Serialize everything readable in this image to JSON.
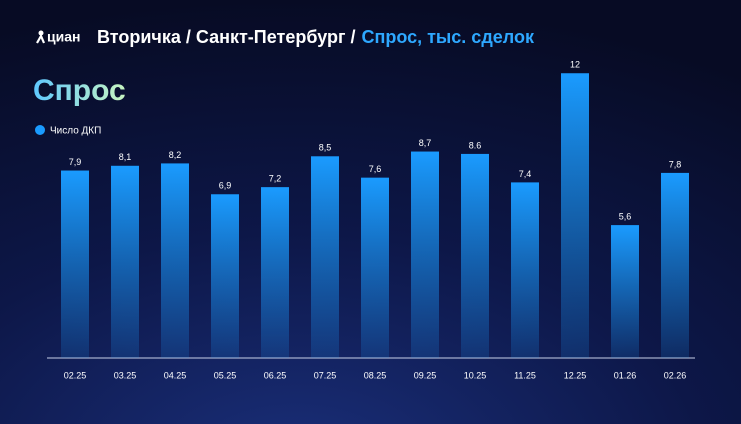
{
  "chart_data": {
    "type": "bar",
    "brand": "циан",
    "title": "Вторичка / Санкт-Петербург /",
    "subtitle": "Спрос, тыс. сделок",
    "heading": "Спрос",
    "series_name": "Число ДКП",
    "color": "#1a9bff",
    "categories": [
      "02.25",
      "03.25",
      "04.25",
      "05.25",
      "06.25",
      "07.25",
      "08.25",
      "09.25",
      "10.25",
      "11.25",
      "12.25",
      "01.26",
      "02.26"
    ],
    "values": [
      7.9,
      8.1,
      8.2,
      6.9,
      7.2,
      8.5,
      7.6,
      8.7,
      8.6,
      7.4,
      12,
      5.6,
      7.8
    ],
    "value_labels": [
      "7,9",
      "8,1",
      "8,2",
      "6,9",
      "7,2",
      "8,5",
      "7,6",
      "8,7",
      "8.6",
      "7,4",
      "12",
      "5,6",
      "7,8"
    ],
    "ylim": [
      0,
      12.6
    ]
  }
}
